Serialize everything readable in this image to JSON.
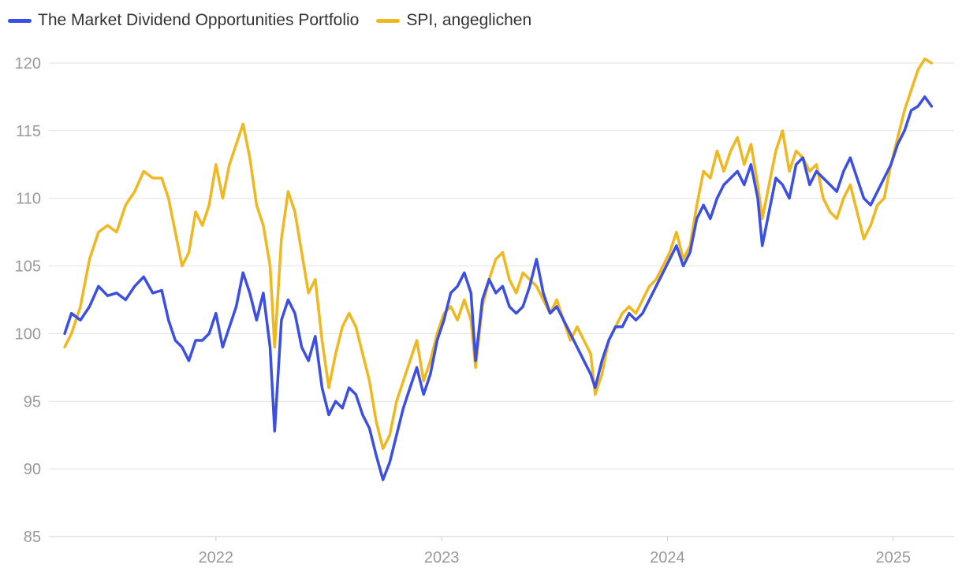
{
  "chart_data": {
    "type": "line",
    "title": "",
    "xlabel": "",
    "ylabel": "",
    "ylim": [
      85,
      121
    ],
    "xlim": [
      2021.33,
      2025.2
    ],
    "yticks": [
      85,
      90,
      95,
      100,
      105,
      110,
      115,
      120
    ],
    "xticks": [
      {
        "label": "2022",
        "x": 2022.0
      },
      {
        "label": "2023",
        "x": 2023.0
      },
      {
        "label": "2024",
        "x": 2024.0
      },
      {
        "label": "2025",
        "x": 2025.0
      }
    ],
    "series": [
      {
        "name": "The Market Dividend Opportunities Portfolio",
        "color": "#3b4fe0",
        "points": [
          [
            2021.33,
            100.0
          ],
          [
            2021.36,
            101.5
          ],
          [
            2021.4,
            101.0
          ],
          [
            2021.44,
            102.0
          ],
          [
            2021.48,
            103.5
          ],
          [
            2021.52,
            102.8
          ],
          [
            2021.56,
            103.0
          ],
          [
            2021.6,
            102.5
          ],
          [
            2021.64,
            103.5
          ],
          [
            2021.68,
            104.2
          ],
          [
            2021.72,
            103.0
          ],
          [
            2021.76,
            103.2
          ],
          [
            2021.79,
            101.0
          ],
          [
            2021.82,
            99.5
          ],
          [
            2021.85,
            99.0
          ],
          [
            2021.88,
            98.0
          ],
          [
            2021.91,
            99.5
          ],
          [
            2021.94,
            99.5
          ],
          [
            2021.97,
            100.0
          ],
          [
            2022.0,
            101.5
          ],
          [
            2022.03,
            99.0
          ],
          [
            2022.06,
            100.5
          ],
          [
            2022.09,
            102.0
          ],
          [
            2022.12,
            104.5
          ],
          [
            2022.15,
            103.0
          ],
          [
            2022.18,
            101.0
          ],
          [
            2022.21,
            103.0
          ],
          [
            2022.24,
            99.0
          ],
          [
            2022.26,
            92.8
          ],
          [
            2022.29,
            101.0
          ],
          [
            2022.32,
            102.5
          ],
          [
            2022.35,
            101.5
          ],
          [
            2022.38,
            99.0
          ],
          [
            2022.41,
            98.0
          ],
          [
            2022.44,
            99.8
          ],
          [
            2022.47,
            96.0
          ],
          [
            2022.5,
            94.0
          ],
          [
            2022.53,
            95.0
          ],
          [
            2022.56,
            94.5
          ],
          [
            2022.59,
            96.0
          ],
          [
            2022.62,
            95.5
          ],
          [
            2022.65,
            94.0
          ],
          [
            2022.68,
            93.0
          ],
          [
            2022.71,
            91.0
          ],
          [
            2022.74,
            89.2
          ],
          [
            2022.77,
            90.5
          ],
          [
            2022.8,
            92.5
          ],
          [
            2022.83,
            94.5
          ],
          [
            2022.86,
            96.0
          ],
          [
            2022.89,
            97.5
          ],
          [
            2022.92,
            95.5
          ],
          [
            2022.95,
            97.0
          ],
          [
            2022.98,
            99.5
          ],
          [
            2023.01,
            101.0
          ],
          [
            2023.04,
            103.0
          ],
          [
            2023.07,
            103.5
          ],
          [
            2023.1,
            104.5
          ],
          [
            2023.13,
            103.0
          ],
          [
            2023.15,
            98.0
          ],
          [
            2023.18,
            102.5
          ],
          [
            2023.21,
            104.0
          ],
          [
            2023.24,
            103.0
          ],
          [
            2023.27,
            103.5
          ],
          [
            2023.3,
            102.0
          ],
          [
            2023.33,
            101.5
          ],
          [
            2023.36,
            102.0
          ],
          [
            2023.39,
            103.5
          ],
          [
            2023.42,
            105.5
          ],
          [
            2023.45,
            103.0
          ],
          [
            2023.48,
            101.5
          ],
          [
            2023.51,
            102.0
          ],
          [
            2023.54,
            101.0
          ],
          [
            2023.57,
            100.0
          ],
          [
            2023.6,
            99.0
          ],
          [
            2023.63,
            98.0
          ],
          [
            2023.66,
            97.0
          ],
          [
            2023.68,
            96.0
          ],
          [
            2023.71,
            98.0
          ],
          [
            2023.74,
            99.5
          ],
          [
            2023.77,
            100.5
          ],
          [
            2023.8,
            100.5
          ],
          [
            2023.83,
            101.5
          ],
          [
            2023.86,
            101.0
          ],
          [
            2023.89,
            101.5
          ],
          [
            2023.92,
            102.5
          ],
          [
            2023.95,
            103.5
          ],
          [
            2023.98,
            104.5
          ],
          [
            2024.01,
            105.5
          ],
          [
            2024.04,
            106.5
          ],
          [
            2024.07,
            105.0
          ],
          [
            2024.1,
            106.0
          ],
          [
            2024.13,
            108.5
          ],
          [
            2024.16,
            109.5
          ],
          [
            2024.19,
            108.5
          ],
          [
            2024.22,
            110.0
          ],
          [
            2024.25,
            111.0
          ],
          [
            2024.28,
            111.5
          ],
          [
            2024.31,
            112.0
          ],
          [
            2024.34,
            111.0
          ],
          [
            2024.37,
            112.5
          ],
          [
            2024.4,
            110.0
          ],
          [
            2024.42,
            106.5
          ],
          [
            2024.45,
            109.0
          ],
          [
            2024.48,
            111.5
          ],
          [
            2024.51,
            111.0
          ],
          [
            2024.54,
            110.0
          ],
          [
            2024.57,
            112.5
          ],
          [
            2024.6,
            113.0
          ],
          [
            2024.63,
            111.0
          ],
          [
            2024.66,
            112.0
          ],
          [
            2024.69,
            111.5
          ],
          [
            2024.72,
            111.0
          ],
          [
            2024.75,
            110.5
          ],
          [
            2024.78,
            112.0
          ],
          [
            2024.81,
            113.0
          ],
          [
            2024.84,
            111.5
          ],
          [
            2024.87,
            110.0
          ],
          [
            2024.9,
            109.5
          ],
          [
            2024.93,
            110.5
          ],
          [
            2024.96,
            111.5
          ],
          [
            2024.99,
            112.5
          ],
          [
            2025.02,
            114.0
          ],
          [
            2025.05,
            115.0
          ],
          [
            2025.08,
            116.5
          ],
          [
            2025.11,
            116.8
          ],
          [
            2025.14,
            117.5
          ],
          [
            2025.17,
            116.8
          ]
        ]
      },
      {
        "name": "SPI, angeglichen",
        "color": "#f0b820",
        "points": [
          [
            2021.33,
            99.0
          ],
          [
            2021.36,
            100.0
          ],
          [
            2021.4,
            102.0
          ],
          [
            2021.44,
            105.5
          ],
          [
            2021.48,
            107.5
          ],
          [
            2021.52,
            108.0
          ],
          [
            2021.56,
            107.5
          ],
          [
            2021.6,
            109.5
          ],
          [
            2021.64,
            110.5
          ],
          [
            2021.68,
            112.0
          ],
          [
            2021.72,
            111.5
          ],
          [
            2021.76,
            111.5
          ],
          [
            2021.79,
            110.0
          ],
          [
            2021.82,
            107.5
          ],
          [
            2021.85,
            105.0
          ],
          [
            2021.88,
            106.0
          ],
          [
            2021.91,
            109.0
          ],
          [
            2021.94,
            108.0
          ],
          [
            2021.97,
            109.5
          ],
          [
            2022.0,
            112.5
          ],
          [
            2022.03,
            110.0
          ],
          [
            2022.06,
            112.5
          ],
          [
            2022.09,
            114.0
          ],
          [
            2022.12,
            115.5
          ],
          [
            2022.15,
            113.0
          ],
          [
            2022.18,
            109.5
          ],
          [
            2022.21,
            108.0
          ],
          [
            2022.24,
            105.0
          ],
          [
            2022.26,
            99.0
          ],
          [
            2022.29,
            107.0
          ],
          [
            2022.32,
            110.5
          ],
          [
            2022.35,
            109.0
          ],
          [
            2022.38,
            106.0
          ],
          [
            2022.41,
            103.0
          ],
          [
            2022.44,
            104.0
          ],
          [
            2022.47,
            99.5
          ],
          [
            2022.5,
            96.0
          ],
          [
            2022.53,
            98.5
          ],
          [
            2022.56,
            100.5
          ],
          [
            2022.59,
            101.5
          ],
          [
            2022.62,
            100.5
          ],
          [
            2022.65,
            98.5
          ],
          [
            2022.68,
            96.5
          ],
          [
            2022.71,
            93.5
          ],
          [
            2022.74,
            91.5
          ],
          [
            2022.77,
            92.5
          ],
          [
            2022.8,
            95.0
          ],
          [
            2022.83,
            96.5
          ],
          [
            2022.86,
            98.0
          ],
          [
            2022.89,
            99.5
          ],
          [
            2022.92,
            96.5
          ],
          [
            2022.95,
            98.0
          ],
          [
            2022.98,
            100.0
          ],
          [
            2023.01,
            101.5
          ],
          [
            2023.04,
            102.0
          ],
          [
            2023.07,
            101.0
          ],
          [
            2023.1,
            102.5
          ],
          [
            2023.13,
            101.0
          ],
          [
            2023.15,
            97.5
          ],
          [
            2023.18,
            102.0
          ],
          [
            2023.21,
            104.0
          ],
          [
            2023.24,
            105.5
          ],
          [
            2023.27,
            106.0
          ],
          [
            2023.3,
            104.0
          ],
          [
            2023.33,
            103.0
          ],
          [
            2023.36,
            104.5
          ],
          [
            2023.39,
            104.0
          ],
          [
            2023.42,
            103.5
          ],
          [
            2023.45,
            102.5
          ],
          [
            2023.48,
            101.5
          ],
          [
            2023.51,
            102.5
          ],
          [
            2023.54,
            101.0
          ],
          [
            2023.57,
            99.5
          ],
          [
            2023.6,
            100.5
          ],
          [
            2023.63,
            99.5
          ],
          [
            2023.66,
            98.5
          ],
          [
            2023.68,
            95.5
          ],
          [
            2023.71,
            97.0
          ],
          [
            2023.74,
            99.5
          ],
          [
            2023.77,
            100.5
          ],
          [
            2023.8,
            101.5
          ],
          [
            2023.83,
            102.0
          ],
          [
            2023.86,
            101.5
          ],
          [
            2023.89,
            102.5
          ],
          [
            2023.92,
            103.5
          ],
          [
            2023.95,
            104.0
          ],
          [
            2023.98,
            105.0
          ],
          [
            2024.01,
            106.0
          ],
          [
            2024.04,
            107.5
          ],
          [
            2024.07,
            105.5
          ],
          [
            2024.1,
            106.5
          ],
          [
            2024.13,
            109.5
          ],
          [
            2024.16,
            112.0
          ],
          [
            2024.19,
            111.5
          ],
          [
            2024.22,
            113.5
          ],
          [
            2024.25,
            112.0
          ],
          [
            2024.28,
            113.5
          ],
          [
            2024.31,
            114.5
          ],
          [
            2024.34,
            112.5
          ],
          [
            2024.37,
            114.0
          ],
          [
            2024.4,
            111.0
          ],
          [
            2024.42,
            108.5
          ],
          [
            2024.45,
            111.0
          ],
          [
            2024.48,
            113.5
          ],
          [
            2024.51,
            115.0
          ],
          [
            2024.54,
            112.0
          ],
          [
            2024.57,
            113.5
          ],
          [
            2024.6,
            113.0
          ],
          [
            2024.63,
            112.0
          ],
          [
            2024.66,
            112.5
          ],
          [
            2024.69,
            110.0
          ],
          [
            2024.72,
            109.0
          ],
          [
            2024.75,
            108.5
          ],
          [
            2024.78,
            110.0
          ],
          [
            2024.81,
            111.0
          ],
          [
            2024.84,
            109.0
          ],
          [
            2024.87,
            107.0
          ],
          [
            2024.9,
            108.0
          ],
          [
            2024.93,
            109.5
          ],
          [
            2024.96,
            110.0
          ],
          [
            2024.99,
            112.5
          ],
          [
            2025.02,
            114.5
          ],
          [
            2025.05,
            116.5
          ],
          [
            2025.08,
            118.0
          ],
          [
            2025.11,
            119.5
          ],
          [
            2025.14,
            120.3
          ],
          [
            2025.17,
            120.0
          ]
        ]
      }
    ]
  }
}
